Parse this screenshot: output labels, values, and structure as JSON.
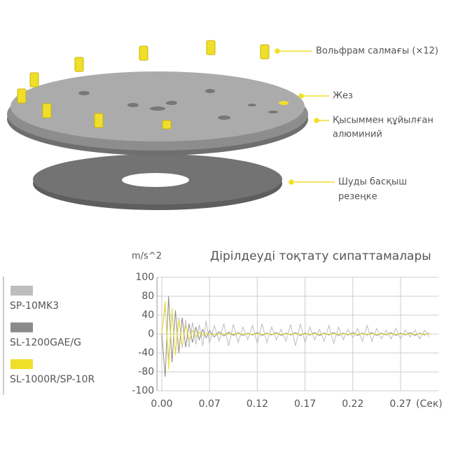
{
  "diagram": {
    "labels": [
      {
        "lines": [
          "Вольфрам салмағы (×12)"
        ]
      },
      {
        "lines": [
          "Жез"
        ]
      },
      {
        "lines": [
          "Қысыммен құйылған",
          "алюминий"
        ]
      },
      {
        "lines": [
          "Шуды басқыш",
          "резеңке"
        ]
      }
    ]
  },
  "chart_data": {
    "type": "line",
    "title": "Дірілдеуді тоқтату сипаттамалары",
    "y_unit": "m/s^2",
    "x_unit": "(Сек)",
    "x": [
      0,
      0.005,
      0.01,
      0.015,
      0.02,
      0.025,
      0.03,
      0.035,
      0.04,
      0.045,
      0.05,
      0.055,
      0.06,
      0.065,
      0.07,
      0.075,
      0.08,
      0.085,
      0.09,
      0.095,
      0.1,
      0.105,
      0.11,
      0.115,
      0.12,
      0.125,
      0.13,
      0.135,
      0.14,
      0.145,
      0.15,
      0.155,
      0.16,
      0.165,
      0.17,
      0.175,
      0.18,
      0.185,
      0.19,
      0.195,
      0.2,
      0.205,
      0.21,
      0.215,
      0.22,
      0.225,
      0.23,
      0.235,
      0.24,
      0.245,
      0.25,
      0.255,
      0.26,
      0.265,
      0.27,
      0.275,
      0.28,
      0.285,
      0.29,
      0.295,
      0.3
    ],
    "series": [
      {
        "name": "SP-10MK3",
        "color": "#bdbdbd",
        "values": [
          0,
          60,
          -55,
          45,
          -40,
          35,
          -30,
          30,
          -28,
          25,
          -22,
          20,
          -25,
          28,
          -20,
          18,
          -15,
          22,
          -25,
          20,
          -18,
          15,
          -12,
          18,
          -20,
          22,
          -18,
          15,
          -12,
          10,
          -15,
          20,
          -25,
          22,
          -18,
          15,
          -12,
          10,
          -15,
          18,
          -20,
          15,
          -12,
          10,
          -8,
          12,
          -15,
          18,
          -15,
          12,
          -10,
          8,
          -10,
          12,
          -10,
          8,
          -6,
          8,
          -10,
          8,
          -6
        ]
      },
      {
        "name": "SL-1200GAE/G",
        "color": "#8a8a8a",
        "values": [
          0,
          -85,
          80,
          -60,
          50,
          -40,
          35,
          -28,
          22,
          -18,
          15,
          -12,
          10,
          -8,
          7,
          -6,
          5,
          -4,
          4,
          -3,
          3,
          -3,
          2,
          -2,
          3,
          -3,
          2,
          -2,
          3,
          -3,
          2,
          -2,
          3,
          -3,
          2,
          -2,
          3,
          -3,
          2,
          -2,
          3,
          -3,
          2,
          -2,
          3,
          -3,
          2,
          -2,
          3,
          -3,
          2,
          -2,
          3,
          -3,
          2,
          -2,
          3,
          -3,
          2,
          -2,
          2
        ]
      },
      {
        "name": "SL-1000R/SP-10R",
        "color": "#f0df2a",
        "values": [
          0,
          70,
          -75,
          55,
          -45,
          30,
          -25,
          18,
          -12,
          8,
          -6,
          4,
          -3,
          2,
          -2,
          1,
          -1,
          1,
          -1,
          1,
          0,
          0,
          0,
          0,
          0,
          0,
          0,
          0,
          0,
          0,
          0,
          0,
          0,
          0,
          0,
          0,
          0,
          0,
          0,
          0,
          0,
          0,
          0,
          0,
          0,
          0,
          0,
          0,
          0,
          0,
          0,
          0,
          0,
          0,
          0,
          0,
          0,
          0,
          0,
          0,
          0
        ]
      }
    ],
    "xlim": [
      -0.007,
      0.31
    ],
    "ylim": [
      -100,
      100
    ],
    "xticks": [
      {
        "value": 0,
        "label": "0.00"
      },
      0.07,
      0.12,
      0.17,
      0.22,
      0.27
    ],
    "yticks": [
      100,
      80,
      40,
      0,
      -40,
      -80,
      -100
    ],
    "grid": true
  }
}
